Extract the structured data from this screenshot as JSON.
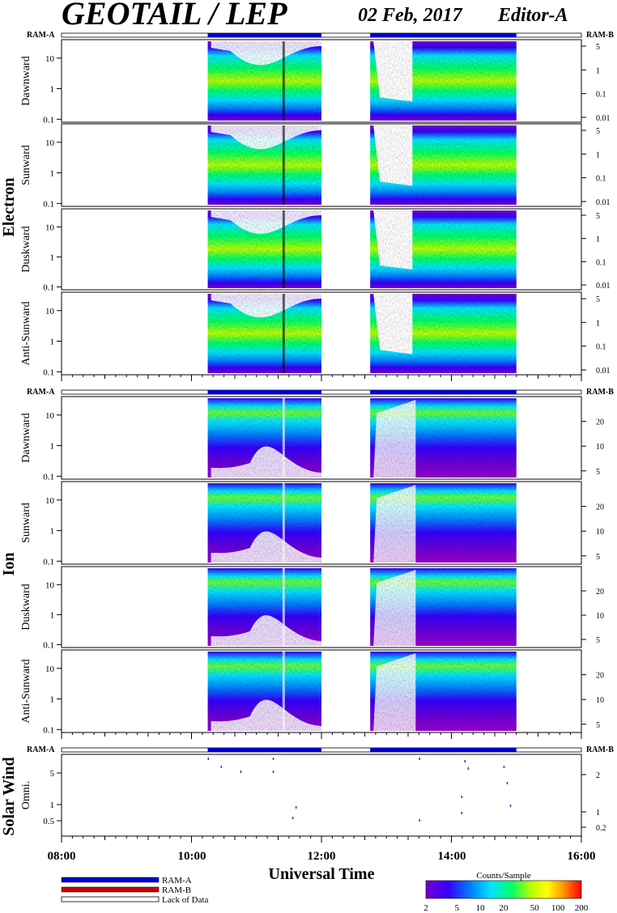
{
  "header": {
    "title": "GEOTAIL / LEP",
    "date": "02 Feb, 2017",
    "editor": "Editor-A"
  },
  "ram_labels": {
    "a": "RAM-A",
    "b": "RAM-B"
  },
  "groups": {
    "electron": "Electron",
    "ion": "Ion",
    "solar_wind": "Solar Wind"
  },
  "panel_names": {
    "dawnward": "Dawnward",
    "sunward": "Sunward",
    "duskward": "Duskward",
    "anti_sunward": "Anti-Sunward",
    "omni": "Omni."
  },
  "left_ticks": {
    "ten": "10",
    "one": "1",
    "tenth": "0.1",
    "five": "5",
    "half": "0.5"
  },
  "right_ticks": {
    "electron": [
      "5",
      "1",
      "0.1",
      "0.01"
    ],
    "ion": [
      "20",
      "10",
      "5"
    ],
    "solar_wind": [
      "2",
      "1",
      "0.2"
    ]
  },
  "x_axis": {
    "ticks": [
      "08:00",
      "10:00",
      "12:00",
      "14:00",
      "16:00"
    ],
    "label": "Universal Time"
  },
  "legend": {
    "ram_a": "RAM-A",
    "ram_b": "RAM-B",
    "lack": "Lack of Data",
    "colors": {
      "ram_a": "#0000cc",
      "ram_b": "#cc0000",
      "lack": "#ffffff"
    }
  },
  "colorbar": {
    "title": "Counts/Sample",
    "ticks": [
      "2",
      "5",
      "10",
      "20",
      "50",
      "100",
      "200"
    ],
    "colors": [
      "#7700cc",
      "#3300ff",
      "#0088ff",
      "#00e5ff",
      "#00ff66",
      "#bbff00",
      "#ffff00",
      "#ff9900",
      "#ff0000"
    ]
  },
  "chart_data": {
    "type": "heatmap",
    "time_range": [
      "08:00",
      "16:00"
    ],
    "coverage": [
      {
        "mode": "RAM-A",
        "from": "10:15",
        "to": "12:00"
      },
      {
        "mode": "RAM-A",
        "from": "12:45",
        "to": "15:00"
      }
    ],
    "electron_panels": [
      "Dawnward",
      "Sunward",
      "Duskward",
      "Anti-Sunward"
    ],
    "ion_panels": [
      "Dawnward",
      "Sunward",
      "Duskward",
      "Anti-Sunward"
    ],
    "solar_wind_panels": [
      "Omni."
    ],
    "colorbar_range": [
      2,
      200
    ]
  }
}
